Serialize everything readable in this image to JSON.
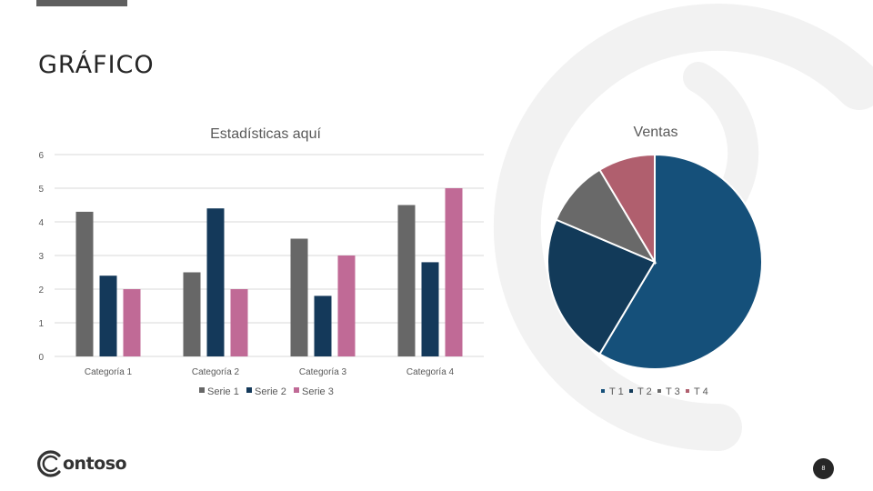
{
  "slide": {
    "title": "GRÁFICO",
    "logo_text": "ontoso",
    "page_number": "8"
  },
  "colors": {
    "serie1": "#676767",
    "serie2": "#14395a",
    "serie3": "#c06a96",
    "t1": "#15507a",
    "t2": "#123a59",
    "t3": "#696969",
    "t4": "#b05f6e",
    "decor": "#f2f2f2"
  },
  "chart_data": [
    {
      "type": "bar",
      "title": "Estadísticas aquí",
      "categories": [
        "Categoría 1",
        "Categoría 2",
        "Categoría 3",
        "Categoría 4"
      ],
      "series": [
        {
          "name": "Serie 1",
          "values": [
            4.3,
            2.5,
            3.5,
            4.5
          ]
        },
        {
          "name": "Serie 2",
          "values": [
            2.4,
            4.4,
            1.8,
            2.8
          ]
        },
        {
          "name": "Serie 3",
          "values": [
            2,
            2,
            3,
            5
          ]
        }
      ],
      "ylim": [
        0,
        6
      ],
      "yticks": [
        "0",
        "1",
        "2",
        "3",
        "4",
        "5",
        "6"
      ],
      "grid": true,
      "legend": "bottom"
    },
    {
      "type": "pie",
      "title": "Ventas",
      "labels": [
        "T 1",
        "T 2",
        "T 3",
        "T 4"
      ],
      "values": [
        8.2,
        3.2,
        1.4,
        1.2
      ],
      "legend": "bottom"
    }
  ]
}
